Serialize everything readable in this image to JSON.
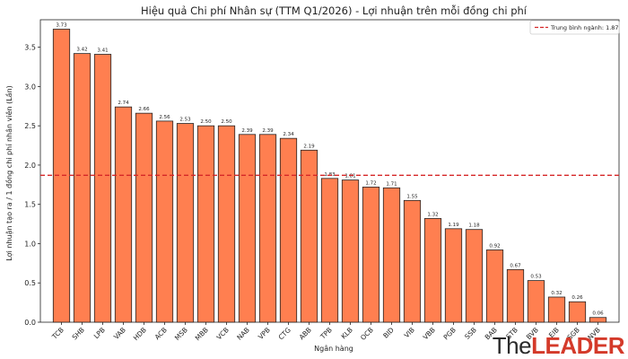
{
  "chart_data": {
    "type": "bar",
    "title": "Hiệu quả Chi phí Nhân sự (TTM Q1/2026) - Lợi nhuận trên mỗi đồng chi phí",
    "xlabel": "Ngân hàng",
    "ylabel": "Lợi nhuận tạo ra / 1 đồng chi phí nhân viên (Lần)",
    "ylim": [
      0,
      3.85
    ],
    "yticks": [
      "0.0",
      "0.5",
      "1.0",
      "1.5",
      "2.0",
      "2.5",
      "3.0",
      "3.5"
    ],
    "categories": [
      "TCB",
      "SHB",
      "LPB",
      "VAB",
      "HDB",
      "ACB",
      "MSB",
      "MBB",
      "VCB",
      "NAB",
      "VPB",
      "CTG",
      "ABB",
      "TPB",
      "KLB",
      "OCB",
      "BID",
      "VIB",
      "VBB",
      "PGB",
      "SSB",
      "BAB",
      "STB",
      "BVB",
      "EIB",
      "SGB",
      "NVB"
    ],
    "values": [
      3.73,
      3.42,
      3.41,
      2.74,
      2.66,
      2.56,
      2.53,
      2.5,
      2.5,
      2.39,
      2.39,
      2.34,
      2.19,
      1.83,
      1.81,
      1.72,
      1.71,
      1.55,
      1.32,
      1.19,
      1.18,
      0.92,
      0.67,
      0.53,
      0.32,
      0.26,
      0.06
    ],
    "data_labels": [
      "3.73",
      "3.42",
      "3.41",
      "2.74",
      "2.66",
      "2.56",
      "2.53",
      "2.50",
      "2.50",
      "2.39",
      "2.39",
      "2.34",
      "2.19",
      "1.83",
      "1.81",
      "1.72",
      "1.71",
      "1.55",
      "1.32",
      "1.19",
      "1.18",
      "0.92",
      "0.67",
      "0.53",
      "0.32",
      "0.26",
      "0.06"
    ],
    "reference_line": {
      "value": 1.87,
      "label": "Trung bình ngành: 1.87",
      "color": "#d62728",
      "style": "dashed"
    },
    "bar_color": "#ff7f50",
    "bar_edge_color": "#222222",
    "legend_position": "top-right",
    "grid": false
  },
  "watermark": {
    "part1": "The",
    "part2": "LEADER"
  }
}
